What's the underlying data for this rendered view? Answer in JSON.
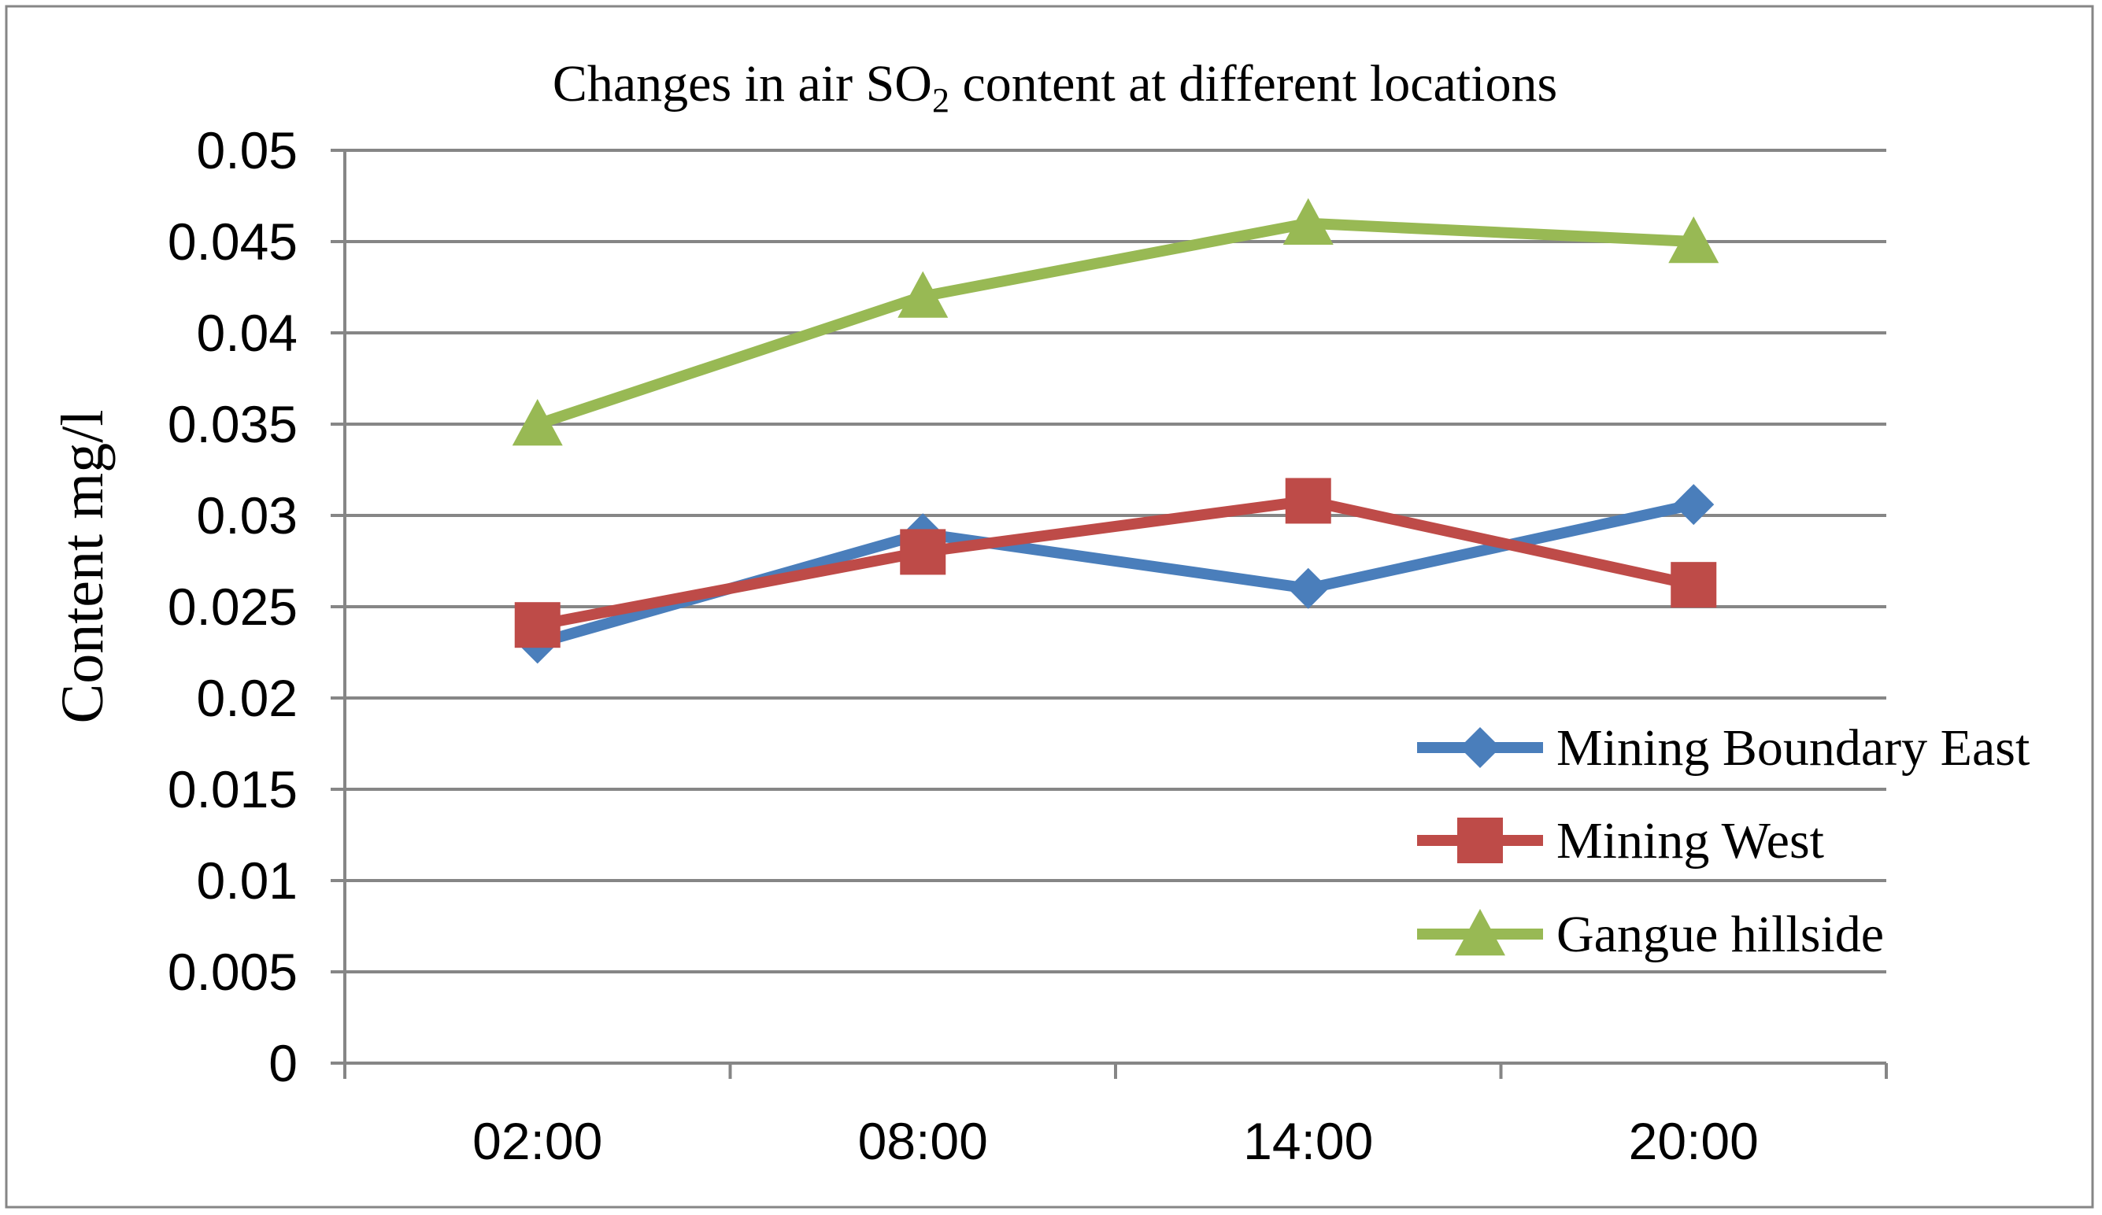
{
  "chart_data": {
    "type": "line",
    "title": "Changes in air SO",
    "title_subscript": "2",
    "title_suffix": " content at different locations",
    "xlabel": "",
    "ylabel": "Content mg/l",
    "categories": [
      "02:00",
      "08:00",
      "14:00",
      "20:00"
    ],
    "ylim": [
      0,
      0.05
    ],
    "yticks": [
      "0",
      "0.005",
      "0.01",
      "0.015",
      "0.02",
      "0.025",
      "0.03",
      "0.035",
      "0.04",
      "0.045",
      "0.05"
    ],
    "grid": true,
    "legend_position": "bottom-right",
    "series": [
      {
        "name": "Mining Boundary East",
        "values": [
          0.023,
          0.029,
          0.026,
          0.0306
        ],
        "color": "#4a7ebb",
        "marker": "diamond"
      },
      {
        "name": "Mining West",
        "values": [
          0.024,
          0.028,
          0.0308,
          0.0262
        ],
        "color": "#be4b48",
        "marker": "square"
      },
      {
        "name": "Gangue hillside",
        "values": [
          0.035,
          0.042,
          0.046,
          0.045
        ],
        "color": "#98b954",
        "marker": "triangle"
      }
    ]
  }
}
